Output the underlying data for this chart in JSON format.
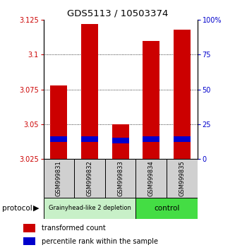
{
  "title": "GDS5113 / 10503374",
  "samples": [
    "GSM999831",
    "GSM999832",
    "GSM999833",
    "GSM999834",
    "GSM999835"
  ],
  "red_bar_bottom": [
    3.025,
    3.025,
    3.025,
    3.025,
    3.025
  ],
  "red_bar_top": [
    3.078,
    3.122,
    3.05,
    3.11,
    3.118
  ],
  "blue_bar_bottom": [
    3.037,
    3.037,
    3.036,
    3.037,
    3.037
  ],
  "blue_bar_top": [
    3.041,
    3.041,
    3.04,
    3.041,
    3.041
  ],
  "ylim_left": [
    3.025,
    3.125
  ],
  "ylim_right": [
    0,
    100
  ],
  "yticks_left": [
    3.025,
    3.05,
    3.075,
    3.1,
    3.125
  ],
  "ytick_labels_left": [
    "3.025",
    "3.05",
    "3.075",
    "3.1",
    "3.125"
  ],
  "yticks_right": [
    0,
    25,
    50,
    75,
    100
  ],
  "ytick_labels_right": [
    "0",
    "25",
    "50",
    "75",
    "100%"
  ],
  "group1_samples": [
    0,
    1,
    2
  ],
  "group2_samples": [
    3,
    4
  ],
  "group1_label": "Grainyhead-like 2 depletion",
  "group2_label": "control",
  "group1_color": "#c8f0c8",
  "group2_color": "#44dd44",
  "protocol_label": "protocol",
  "bar_width": 0.55,
  "red_color": "#cc0000",
  "blue_color": "#0000cc",
  "bg_color": "#ffffff",
  "left_tick_color": "#cc0000",
  "right_tick_color": "#0000cc",
  "sample_box_color": "#d0d0d0"
}
